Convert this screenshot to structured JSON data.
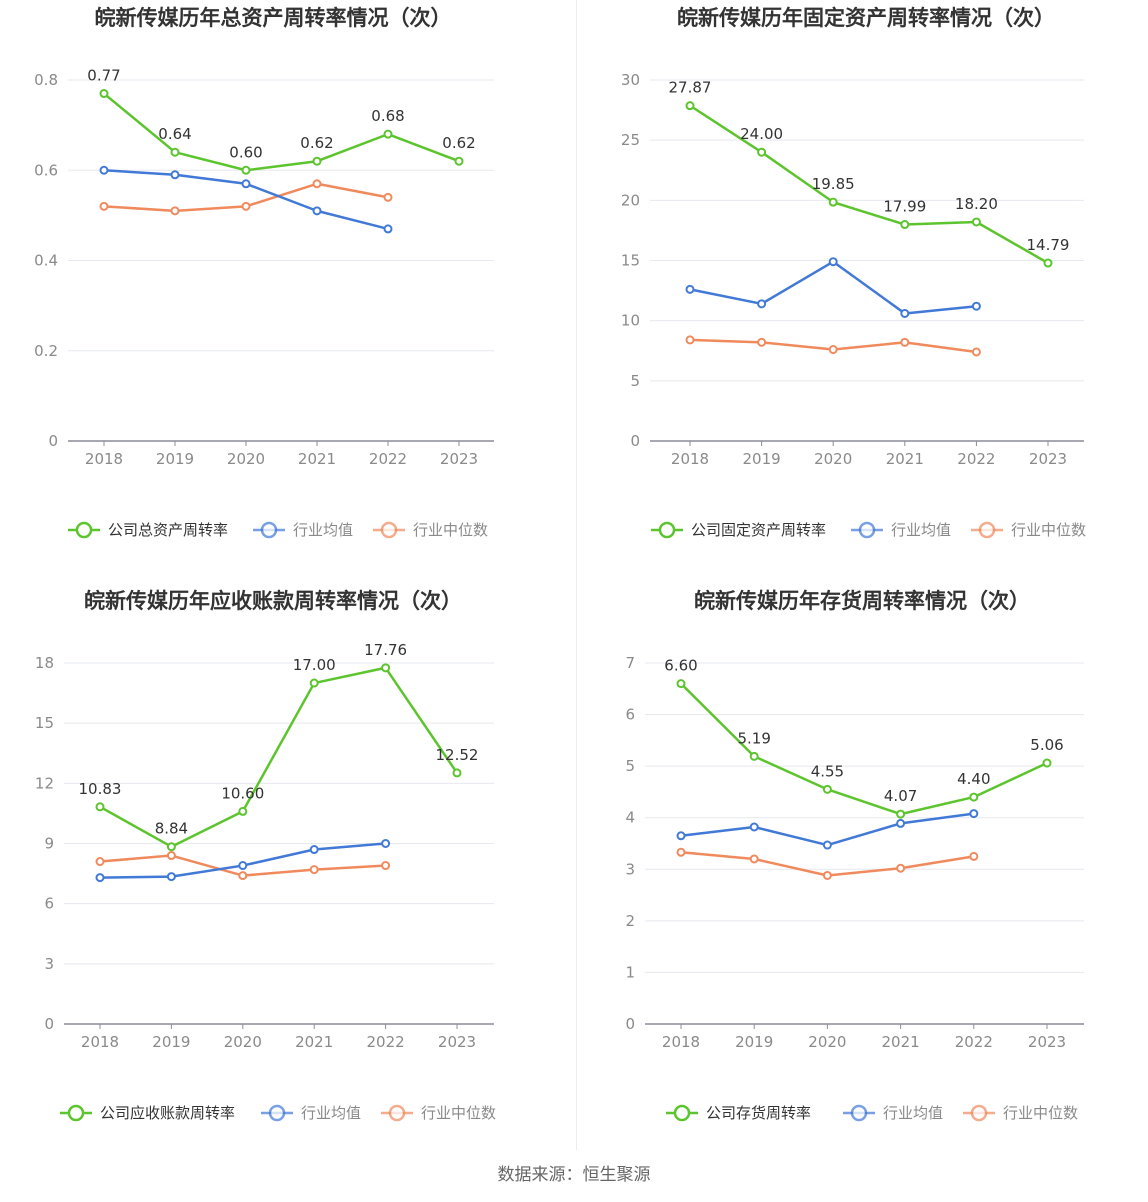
{
  "source_label": "数据来源：恒生聚源",
  "colors": {
    "company": "#5cc42d",
    "avg": "#4179d6",
    "median": "#f08a5d"
  },
  "chart_data": [
    {
      "type": "line",
      "title": "皖新传媒历年总资产周转率情况（次）",
      "categories": [
        "2018",
        "2019",
        "2020",
        "2021",
        "2022",
        "2023"
      ],
      "yticks": [
        "0",
        "0.2",
        "0.4",
        "0.6",
        "0.8"
      ],
      "ylim": [
        0,
        0.8
      ],
      "series": [
        {
          "name": "公司总资产周转率",
          "key": "company",
          "values": [
            0.77,
            0.64,
            0.6,
            0.62,
            0.68,
            0.62
          ],
          "labels": [
            "0.77",
            "0.64",
            "0.60",
            "0.62",
            "0.68",
            "0.62"
          ]
        },
        {
          "name": "行业均值",
          "key": "avg",
          "values": [
            0.6,
            0.59,
            0.57,
            0.51,
            0.47,
            null
          ]
        },
        {
          "name": "行业中位数",
          "key": "median",
          "values": [
            0.52,
            0.51,
            0.52,
            0.57,
            0.54,
            null
          ]
        }
      ]
    },
    {
      "type": "line",
      "title": "皖新传媒历年固定资产周转率情况（次）",
      "categories": [
        "2018",
        "2019",
        "2020",
        "2021",
        "2022",
        "2023"
      ],
      "yticks": [
        "0",
        "5",
        "10",
        "15",
        "20",
        "25",
        "30"
      ],
      "ylim": [
        0,
        30
      ],
      "series": [
        {
          "name": "公司固定资产周转率",
          "key": "company",
          "values": [
            27.87,
            24.0,
            19.85,
            17.99,
            18.2,
            14.79
          ],
          "labels": [
            "27.87",
            "24.00",
            "19.85",
            "17.99",
            "18.20",
            "14.79"
          ]
        },
        {
          "name": "行业均值",
          "key": "avg",
          "values": [
            12.6,
            11.4,
            14.9,
            10.6,
            11.2,
            null
          ]
        },
        {
          "name": "行业中位数",
          "key": "median",
          "values": [
            8.4,
            8.2,
            7.6,
            8.2,
            7.4,
            null
          ]
        }
      ]
    },
    {
      "type": "line",
      "title": "皖新传媒历年应收账款周转率情况（次）",
      "categories": [
        "2018",
        "2019",
        "2020",
        "2021",
        "2022",
        "2023"
      ],
      "yticks": [
        "0",
        "3",
        "6",
        "9",
        "12",
        "15",
        "18"
      ],
      "ylim": [
        0,
        18
      ],
      "series": [
        {
          "name": "公司应收账款周转率",
          "key": "company",
          "values": [
            10.83,
            8.84,
            10.6,
            17.0,
            17.76,
            12.52
          ],
          "labels": [
            "10.83",
            "8.84",
            "10.60",
            "17.00",
            "17.76",
            "12.52"
          ]
        },
        {
          "name": "行业均值",
          "key": "avg",
          "values": [
            7.3,
            7.35,
            7.9,
            8.7,
            9.0,
            null
          ]
        },
        {
          "name": "行业中位数",
          "key": "median",
          "values": [
            8.1,
            8.4,
            7.4,
            7.7,
            7.9,
            null
          ]
        }
      ]
    },
    {
      "type": "line",
      "title": "皖新传媒历年存货周转率情况（次）",
      "categories": [
        "2018",
        "2019",
        "2020",
        "2021",
        "2022",
        "2023"
      ],
      "yticks": [
        "0",
        "1",
        "2",
        "3",
        "4",
        "5",
        "6",
        "7"
      ],
      "ylim": [
        0,
        7
      ],
      "series": [
        {
          "name": "公司存货周转率",
          "key": "company",
          "values": [
            6.6,
            5.19,
            4.55,
            4.07,
            4.4,
            5.06
          ],
          "labels": [
            "6.60",
            "5.19",
            "4.55",
            "4.07",
            "4.40",
            "5.06"
          ]
        },
        {
          "name": "行业均值",
          "key": "avg",
          "values": [
            3.65,
            3.82,
            3.47,
            3.89,
            4.08,
            null
          ]
        },
        {
          "name": "行业中位数",
          "key": "median",
          "values": [
            3.33,
            3.2,
            2.88,
            3.02,
            3.25,
            null
          ]
        }
      ]
    }
  ]
}
